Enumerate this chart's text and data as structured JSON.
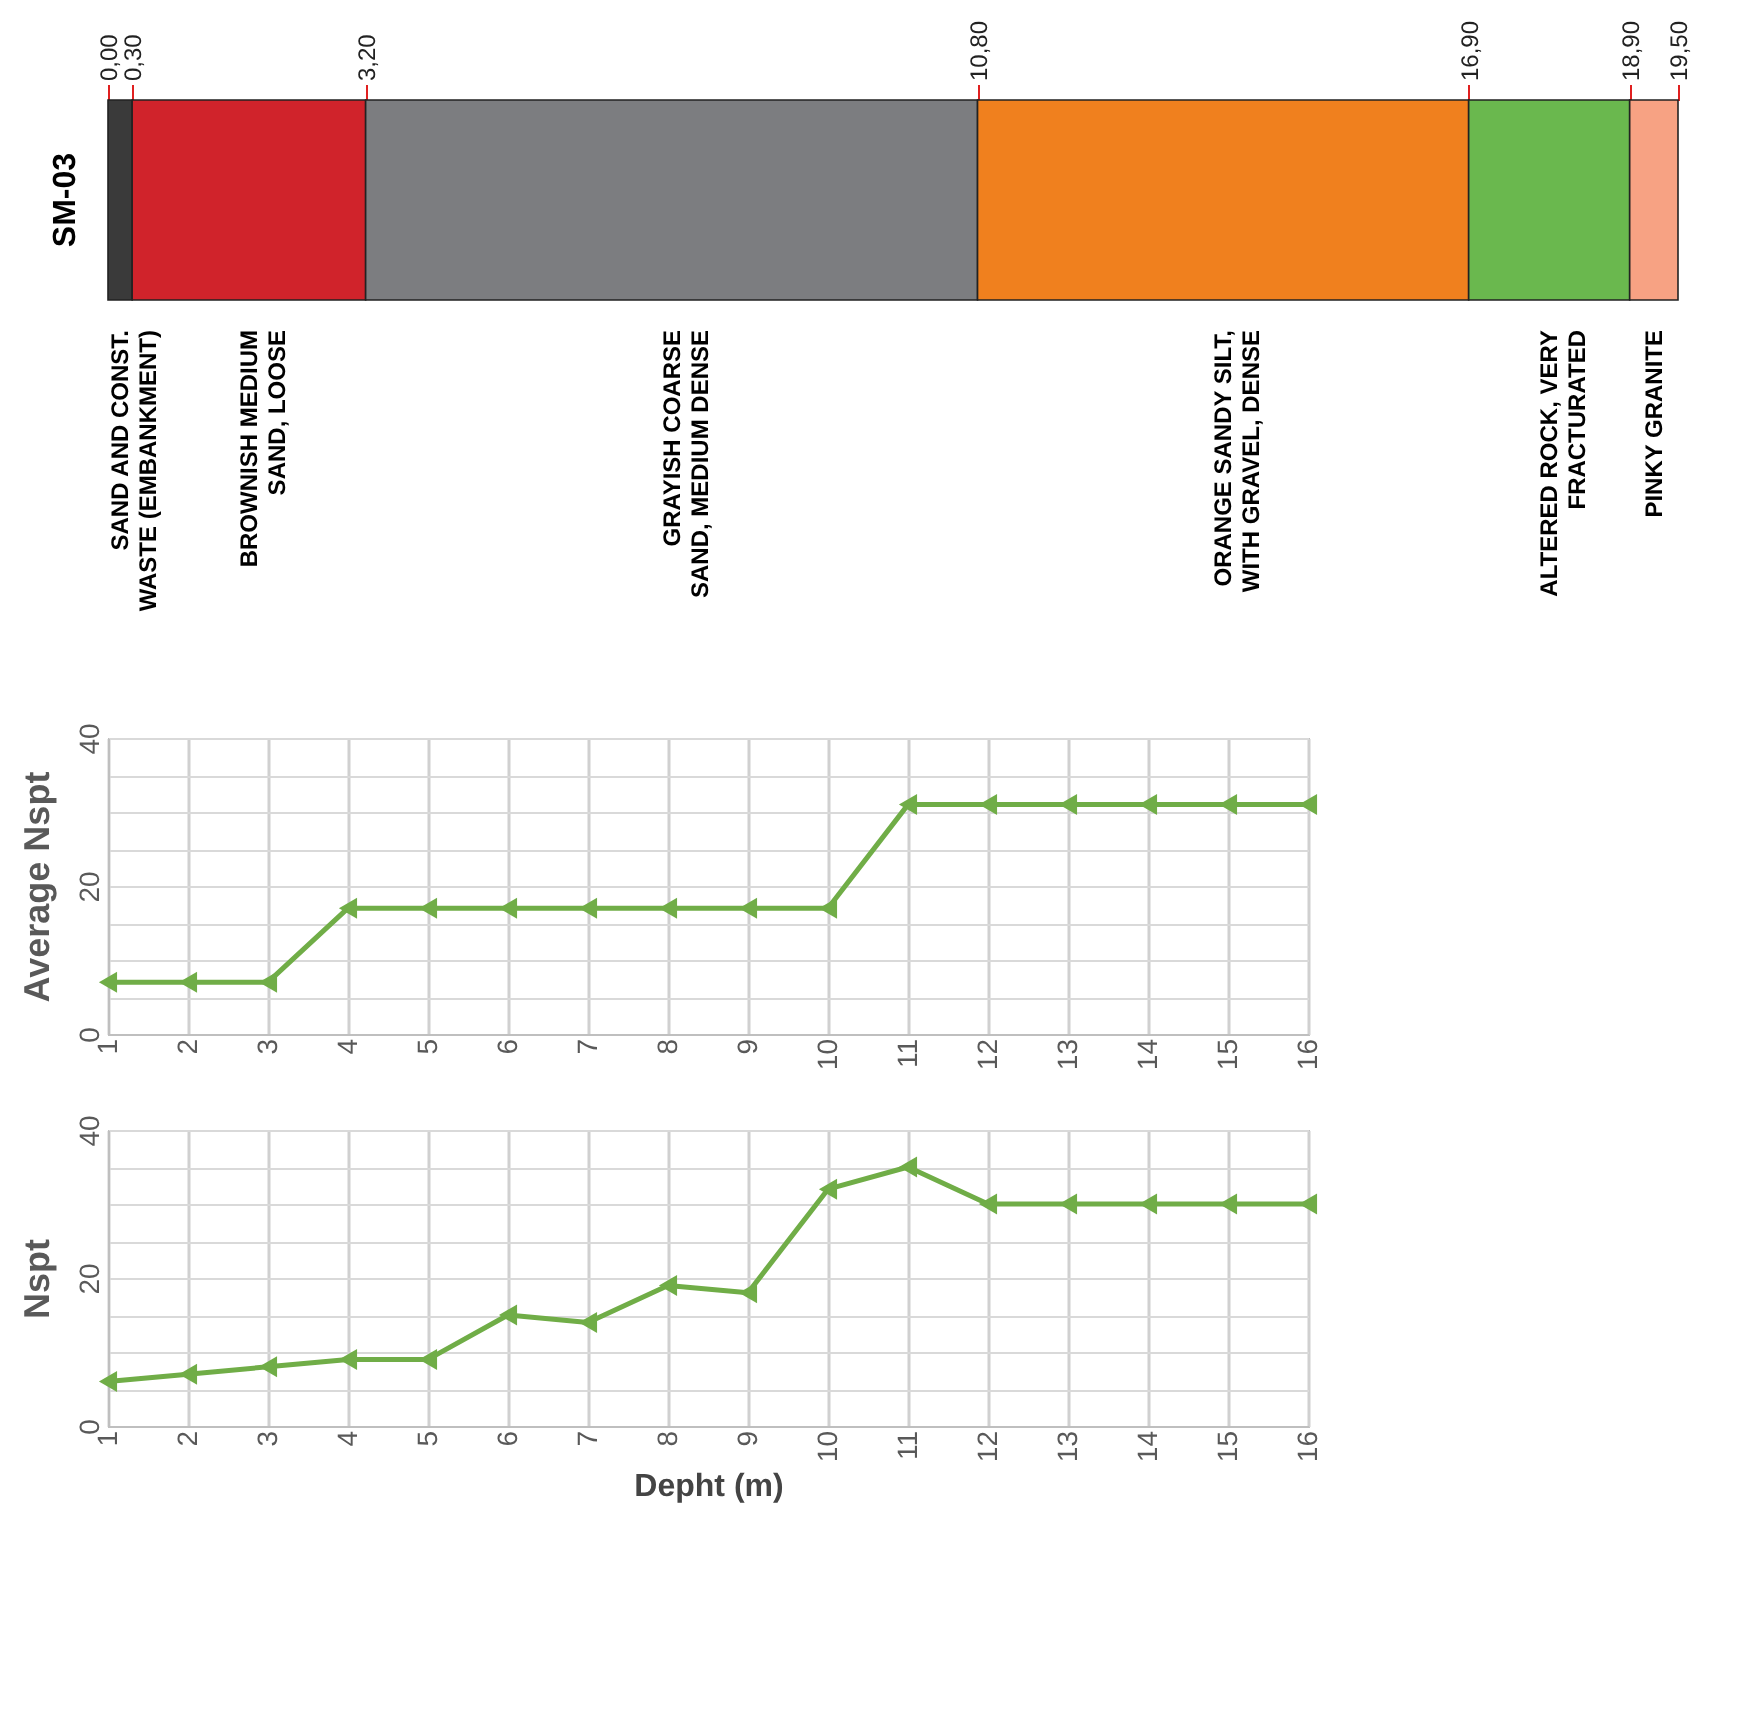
{
  "chart_data": [
    {
      "type": "bar",
      "orientation": "horizontal",
      "stacked": true,
      "categories": [
        "SM-03"
      ],
      "xlim": [
        0,
        19.5
      ],
      "xticks": [
        {
          "value": 0,
          "label": "0,00"
        },
        {
          "value": 0.3,
          "label": "0,30"
        },
        {
          "value": 3.2,
          "label": "3,20"
        },
        {
          "value": 10.8,
          "label": "10,80"
        },
        {
          "value": 16.9,
          "label": "16,90"
        },
        {
          "value": 18.9,
          "label": "18,90"
        },
        {
          "value": 19.5,
          "label": "19,50"
        }
      ],
      "legend": false,
      "series": [
        {
          "name": "SAND AND CONST. WASTE (EMBANKMENT)",
          "color": "#3a3a3a",
          "values": [
            0.3
          ]
        },
        {
          "name": "BROWNISH MEDIUM SAND, LOOSE",
          "color": "#d0232b",
          "values": [
            2.9
          ]
        },
        {
          "name": "GRAYISH COARSE SAND, MEDIUM DENSE",
          "color": "#7c7d80",
          "values": [
            7.6
          ]
        },
        {
          "name": "ORANGE SANDY SILT, WITH GRAVEL, DENSE",
          "color": "#f0801e",
          "values": [
            6.1
          ]
        },
        {
          "name": "ALTERED ROCK, VERY FRACTURATED",
          "color": "#6ab84e",
          "values": [
            2.0
          ]
        },
        {
          "name": "PINKY GRANITE",
          "color": "#f7a283",
          "values": [
            0.6
          ]
        }
      ]
    },
    {
      "type": "line",
      "ylabel": "Average Nspt",
      "categories": [
        "1",
        "2",
        "3",
        "4",
        "5",
        "6",
        "7",
        "8",
        "9",
        "10",
        "11",
        "12",
        "13",
        "14",
        "15",
        "16"
      ],
      "ylim": [
        0,
        40
      ],
      "yticks": [
        0,
        {
          "value": 5,
          "label": null
        },
        {
          "value": 10,
          "label": null
        },
        {
          "value": 15,
          "label": null
        },
        20,
        {
          "value": 25,
          "label": null
        },
        {
          "value": 30,
          "label": null
        },
        {
          "value": 35,
          "label": null
        },
        40
      ],
      "grid": true,
      "marker": "triangle",
      "series": [
        {
          "color": "#70ad47",
          "values": [
            7,
            7,
            7,
            17,
            17,
            17,
            17,
            17,
            17,
            17,
            31,
            31,
            31,
            31,
            31,
            31
          ]
        }
      ]
    },
    {
      "type": "line",
      "ylabel": "Nspt",
      "xlabel": "Depht (m)",
      "categories": [
        "1",
        "2",
        "3",
        "4",
        "5",
        "6",
        "7",
        "8",
        "9",
        "10",
        "11",
        "12",
        "13",
        "14",
        "15",
        "16"
      ],
      "ylim": [
        0,
        40
      ],
      "yticks": [
        0,
        {
          "value": 5,
          "label": null
        },
        {
          "value": 10,
          "label": null
        },
        {
          "value": 15,
          "label": null
        },
        20,
        {
          "value": 25,
          "label": null
        },
        {
          "value": 30,
          "label": null
        },
        {
          "value": 35,
          "label": null
        },
        40
      ],
      "grid": true,
      "marker": "triangle",
      "series": [
        {
          "color": "#70ad47",
          "values": [
            6,
            7,
            8,
            9,
            9,
            15,
            14,
            19,
            18,
            32,
            35,
            30,
            30,
            30,
            30,
            30
          ]
        }
      ]
    }
  ]
}
